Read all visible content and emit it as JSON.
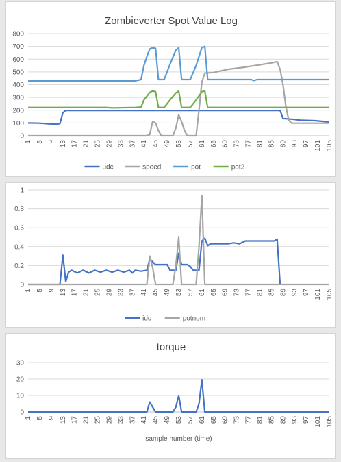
{
  "chart_data": [
    {
      "type": "line",
      "title": "Zombieverter Spot Value Log",
      "xlabel": "",
      "ylabel": "",
      "ylim": [
        0,
        800
      ],
      "yticks": [
        0,
        100,
        200,
        300,
        400,
        500,
        600,
        700,
        800
      ],
      "x": [
        1,
        105
      ],
      "xticks": [
        1,
        5,
        9,
        13,
        17,
        21,
        25,
        29,
        33,
        37,
        41,
        45,
        49,
        53,
        57,
        61,
        65,
        69,
        73,
        77,
        81,
        85,
        89,
        93,
        97,
        101,
        105
      ],
      "legend_position": "bottom",
      "series": [
        {
          "name": "udc",
          "color": "#4472c4",
          "values": [
            [
              1,
              100
            ],
            [
              5,
              98
            ],
            [
              8,
              93
            ],
            [
              11,
              90
            ],
            [
              12,
              95
            ],
            [
              13,
              180
            ],
            [
              14,
              198
            ],
            [
              88,
              198
            ],
            [
              89,
              135
            ],
            [
              92,
              130
            ],
            [
              95,
              122
            ],
            [
              100,
              118
            ],
            [
              105,
              108
            ]
          ]
        },
        {
          "name": "speed",
          "color": "#a5a5a5",
          "values": [
            [
              1,
              0
            ],
            [
              42,
              0
            ],
            [
              43,
              10
            ],
            [
              44,
              110
            ],
            [
              45,
              100
            ],
            [
              46,
              40
            ],
            [
              47,
              0
            ],
            [
              51,
              0
            ],
            [
              52,
              60
            ],
            [
              53,
              165
            ],
            [
              54,
              110
            ],
            [
              55,
              40
            ],
            [
              56,
              0
            ],
            [
              59,
              0
            ],
            [
              60,
              200
            ],
            [
              61,
              420
            ],
            [
              62,
              490
            ],
            [
              65,
              495
            ],
            [
              70,
              520
            ],
            [
              75,
              535
            ],
            [
              80,
              552
            ],
            [
              85,
              570
            ],
            [
              87,
              580
            ],
            [
              88,
              520
            ],
            [
              89,
              400
            ],
            [
              90,
              230
            ],
            [
              91,
              120
            ],
            [
              92,
              98
            ],
            [
              105,
              98
            ]
          ]
        },
        {
          "name": "pot",
          "color": "#5b9bd5",
          "values": [
            [
              1,
              430
            ],
            [
              38,
              430
            ],
            [
              40,
              440
            ],
            [
              41,
              550
            ],
            [
              42,
              620
            ],
            [
              43,
              680
            ],
            [
              44,
              690
            ],
            [
              45,
              685
            ],
            [
              46,
              440
            ],
            [
              48,
              440
            ],
            [
              50,
              560
            ],
            [
              52,
              670
            ],
            [
              53,
              690
            ],
            [
              54,
              440
            ],
            [
              57,
              440
            ],
            [
              59,
              550
            ],
            [
              61,
              690
            ],
            [
              62,
              700
            ],
            [
              63,
              440
            ],
            [
              78,
              440
            ],
            [
              79,
              432
            ],
            [
              80,
              440
            ],
            [
              105,
              440
            ]
          ]
        },
        {
          "name": "pot2",
          "color": "#70ad47",
          "values": [
            [
              1,
              222
            ],
            [
              28,
              222
            ],
            [
              30,
              218
            ],
            [
              38,
              222
            ],
            [
              40,
              225
            ],
            [
              41,
              280
            ],
            [
              42,
              310
            ],
            [
              43,
              340
            ],
            [
              44,
              350
            ],
            [
              45,
              345
            ],
            [
              46,
              222
            ],
            [
              48,
              222
            ],
            [
              50,
              280
            ],
            [
              52,
              335
            ],
            [
              53,
              350
            ],
            [
              54,
              222
            ],
            [
              57,
              222
            ],
            [
              59,
              280
            ],
            [
              61,
              345
            ],
            [
              62,
              350
            ],
            [
              63,
              222
            ],
            [
              105,
              222
            ]
          ]
        }
      ]
    },
    {
      "type": "line",
      "title": "",
      "xlabel": "",
      "ylabel": "",
      "ylim": [
        0,
        1
      ],
      "yticks": [
        0,
        0.2,
        0.4,
        0.6,
        0.8,
        1
      ],
      "x": [
        1,
        105
      ],
      "xticks": [
        1,
        5,
        9,
        13,
        17,
        21,
        25,
        29,
        33,
        37,
        41,
        45,
        49,
        53,
        57,
        61,
        65,
        69,
        73,
        77,
        81,
        85,
        89,
        93,
        97,
        101,
        105
      ],
      "legend_position": "bottom",
      "series": [
        {
          "name": "idc",
          "color": "#4472c4",
          "values": [
            [
              1,
              0
            ],
            [
              12,
              0
            ],
            [
              13,
              0.31
            ],
            [
              14,
              0.03
            ],
            [
              15,
              0.13
            ],
            [
              16,
              0.15
            ],
            [
              18,
              0.12
            ],
            [
              20,
              0.15
            ],
            [
              22,
              0.12
            ],
            [
              24,
              0.15
            ],
            [
              26,
              0.13
            ],
            [
              28,
              0.15
            ],
            [
              30,
              0.13
            ],
            [
              32,
              0.15
            ],
            [
              34,
              0.13
            ],
            [
              36,
              0.15
            ],
            [
              37,
              0.12
            ],
            [
              38,
              0.15
            ],
            [
              40,
              0.14
            ],
            [
              42,
              0.15
            ],
            [
              43,
              0.27
            ],
            [
              44,
              0.24
            ],
            [
              45,
              0.21
            ],
            [
              49,
              0.21
            ],
            [
              50,
              0.15
            ],
            [
              52,
              0.15
            ],
            [
              53,
              0.33
            ],
            [
              54,
              0.21
            ],
            [
              56,
              0.21
            ],
            [
              57,
              0.19
            ],
            [
              58,
              0.15
            ],
            [
              60,
              0.15
            ],
            [
              61,
              0.46
            ],
            [
              62,
              0.49
            ],
            [
              63,
              0.41
            ],
            [
              64,
              0.43
            ],
            [
              70,
              0.43
            ],
            [
              72,
              0.44
            ],
            [
              74,
              0.43
            ],
            [
              76,
              0.46
            ],
            [
              86,
              0.46
            ],
            [
              87,
              0.48
            ],
            [
              88,
              0
            ]
          ]
        },
        {
          "name": "potnom",
          "color": "#a5a5a5",
          "values": [
            [
              1,
              0
            ],
            [
              42,
              0
            ],
            [
              43,
              0.3
            ],
            [
              44,
              0.18
            ],
            [
              45,
              0
            ],
            [
              51,
              0
            ],
            [
              52,
              0.2
            ],
            [
              53,
              0.5
            ],
            [
              54,
              0
            ],
            [
              59,
              0
            ],
            [
              60,
              0.4
            ],
            [
              61,
              0.94
            ],
            [
              62,
              0
            ],
            [
              105,
              0
            ]
          ]
        }
      ]
    },
    {
      "type": "line",
      "title": "torque",
      "xlabel": "sample number (time)",
      "ylabel": "",
      "ylim": [
        0,
        30
      ],
      "yticks": [
        0,
        10,
        20,
        30
      ],
      "x": [
        1,
        105
      ],
      "xticks": [
        1,
        5,
        9,
        13,
        17,
        21,
        25,
        29,
        33,
        37,
        41,
        45,
        49,
        53,
        57,
        61,
        65,
        69,
        73,
        77,
        81,
        85,
        89,
        93,
        97,
        101,
        105
      ],
      "legend_position": "none",
      "series": [
        {
          "name": "",
          "color": "#4472c4",
          "values": [
            [
              1,
              0
            ],
            [
              42,
              0
            ],
            [
              43,
              6
            ],
            [
              44,
              3
            ],
            [
              45,
              0
            ],
            [
              51,
              0
            ],
            [
              52,
              3
            ],
            [
              53,
              10
            ],
            [
              54,
              0
            ],
            [
              59,
              0
            ],
            [
              60,
              5
            ],
            [
              61,
              19.5
            ],
            [
              62,
              0
            ],
            [
              105,
              0
            ]
          ]
        }
      ]
    }
  ]
}
